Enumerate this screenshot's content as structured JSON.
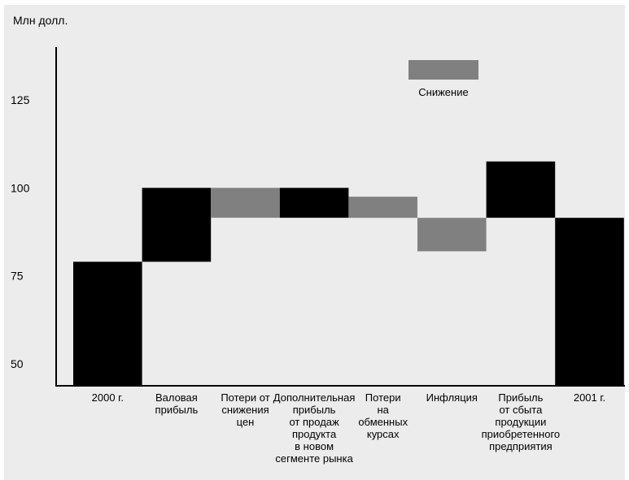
{
  "chart_data": {
    "type": "bar",
    "subtype": "waterfall",
    "unit_label": "Млн долл.",
    "categories": [
      [
        "2000 г."
      ],
      [
        "Валовая",
        "прибыль"
      ],
      [
        "Потери от",
        "снижения",
        "цен"
      ],
      [
        "Дополнительная",
        "прибыль",
        "от продаж",
        "продукта",
        "в новом",
        "сегменте рынка"
      ],
      [
        "Потери",
        "на",
        "обменных",
        "курсах"
      ],
      [
        "Инфляция"
      ],
      [
        "Прибыль",
        "от сбыта",
        "продукции",
        "приобретенного",
        "предприятия"
      ],
      [
        "2001 г."
      ]
    ],
    "bars": [
      {
        "from": 45,
        "to": 79,
        "kind": "total"
      },
      {
        "from": 79,
        "to": 100,
        "kind": "increase"
      },
      {
        "from": 100,
        "to": 91.5,
        "kind": "decrease"
      },
      {
        "from": 91.5,
        "to": 100,
        "kind": "increase"
      },
      {
        "from": 97.5,
        "to": 91.5,
        "kind": "decrease"
      },
      {
        "from": 91.5,
        "to": 82,
        "kind": "decrease"
      },
      {
        "from": 91.5,
        "to": 107.5,
        "kind": "increase"
      },
      {
        "from": 45,
        "to": 91.5,
        "kind": "total"
      }
    ],
    "yticks": [
      "50",
      "75",
      "100",
      "125"
    ],
    "ylim": [
      45,
      140
    ],
    "legend": {
      "label": "Снижение",
      "position": "top-center"
    },
    "colors": {
      "increase": "#000000",
      "decrease": "#808080",
      "total": "#000000",
      "axis": "#000000",
      "background": "#ececec"
    },
    "grid": false
  }
}
